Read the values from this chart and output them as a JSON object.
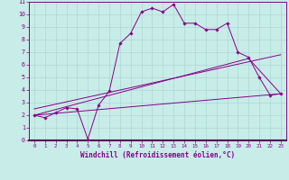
{
  "xlabel": "Windchill (Refroidissement éolien,°C)",
  "background_color": "#c8ece8",
  "line_color": "#880088",
  "grid_color": "#aad8d4",
  "xlim": [
    -0.5,
    23.5
  ],
  "ylim": [
    0,
    11
  ],
  "xticks": [
    0,
    1,
    2,
    3,
    4,
    5,
    6,
    7,
    8,
    9,
    10,
    11,
    12,
    13,
    14,
    15,
    16,
    17,
    18,
    19,
    20,
    21,
    22,
    23
  ],
  "yticks": [
    0,
    1,
    2,
    3,
    4,
    5,
    6,
    7,
    8,
    9,
    10,
    11
  ],
  "series1_x": [
    0,
    1,
    2,
    3,
    4,
    5,
    6,
    7,
    8,
    9,
    10,
    11,
    12,
    13,
    14,
    15,
    16,
    17,
    18,
    19,
    20,
    21,
    22,
    23
  ],
  "series1_y": [
    2.0,
    1.8,
    2.2,
    2.6,
    2.5,
    0.1,
    2.8,
    3.9,
    7.7,
    8.5,
    10.2,
    10.5,
    10.2,
    10.8,
    9.3,
    9.3,
    8.8,
    8.8,
    9.3,
    7.0,
    6.6,
    5.0,
    3.6,
    3.7
  ],
  "series2_x": [
    0,
    23
  ],
  "series2_y": [
    2.0,
    3.7
  ],
  "series3_x": [
    0,
    20,
    23
  ],
  "series3_y": [
    2.0,
    6.5,
    3.7
  ],
  "series4_x": [
    0,
    23
  ],
  "series4_y": [
    2.5,
    6.8
  ]
}
